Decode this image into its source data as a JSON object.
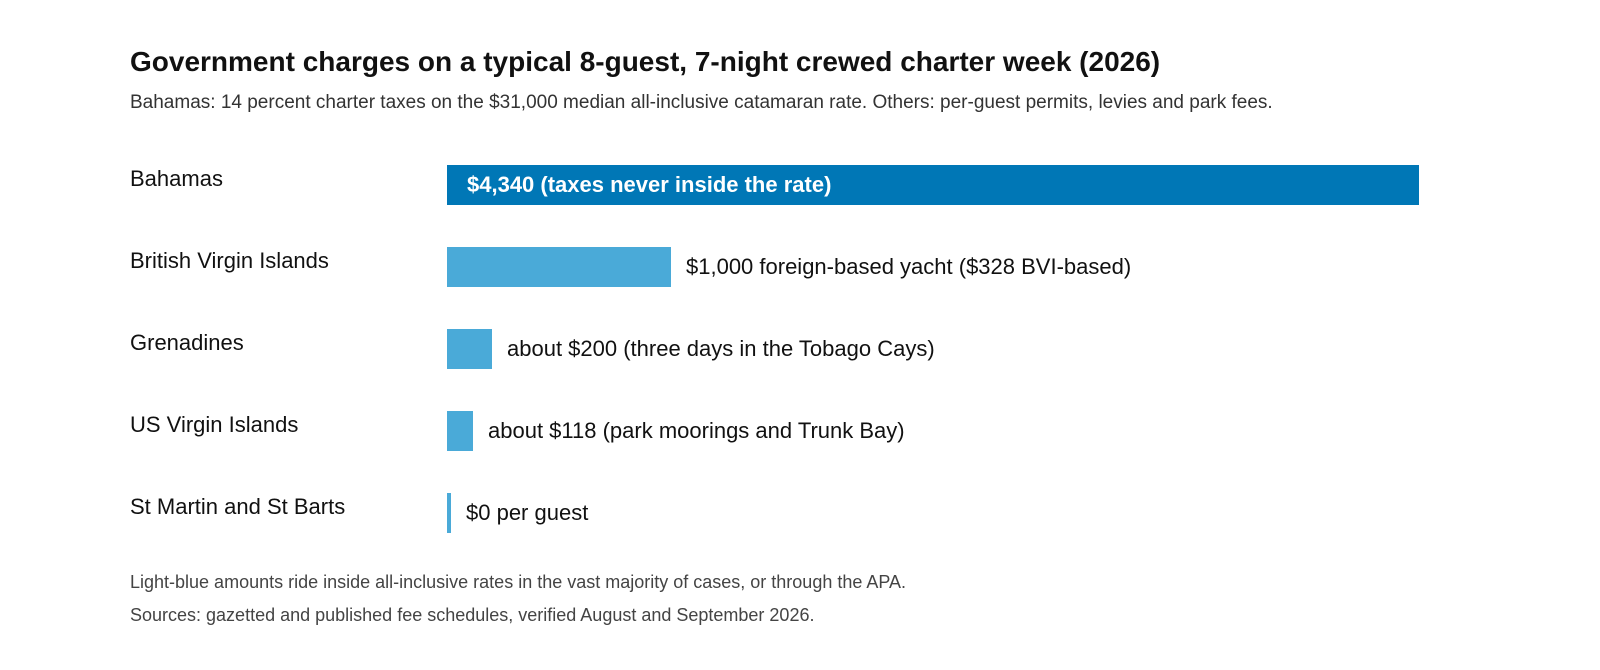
{
  "chart_data": {
    "type": "bar",
    "orientation": "horizontal",
    "title": "Government charges on a typical 8-guest, 7-night crewed charter week (2026)",
    "subtitle": "Bahamas: 14 percent charter taxes on the $31,000 median all-inclusive catamaran rate. Others: per-guest permits, levies and park fees.",
    "categories": [
      "Bahamas",
      "British Virgin Islands",
      "Grenadines",
      "US Virgin Islands",
      "St Martin and St Barts"
    ],
    "values": [
      4340,
      1000,
      200,
      118,
      0
    ],
    "data_labels": [
      "$4,340 (taxes never inside the rate)",
      "$1,000 foreign-based yacht ($328 BVI-based)",
      "about $200 (three days in the Tobago Cays)",
      "about $118 (park moorings and Trunk Bay)",
      "$0 per guest"
    ],
    "xlim": [
      0,
      4340
    ],
    "grid": false,
    "legend": "none",
    "highlight_color": "#0077b6",
    "bar_color": "#4aaad8",
    "highlight_index": 0,
    "footnotes": [
      "Light-blue amounts ride inside all-inclusive rates in the vast majority of cases, or through the APA.",
      "Sources: gazetted and published fee schedules, verified August and September 2026."
    ]
  }
}
